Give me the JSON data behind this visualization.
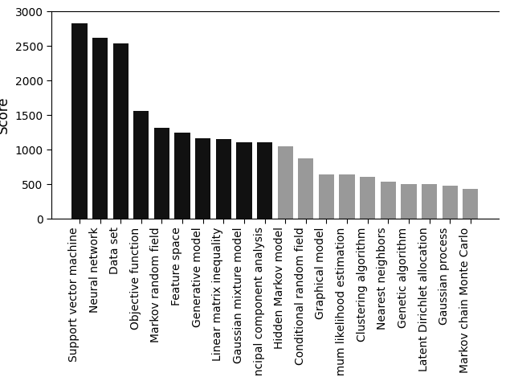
{
  "categories": [
    "Support vector machine",
    "Neural network",
    "Data set",
    "Objective function",
    "Markov random field",
    "Feature space",
    "Generative model",
    "Linear matrix inequality",
    "Gaussian mixture model",
    "Principal component analysis",
    "Hidden Markov model",
    "Conditional random field",
    "Graphical model",
    "Maximum likelihood estimation",
    "Clustering algorithm",
    "Nearest neighbors",
    "Genetic algorithm",
    "Latent Dirichlet allocation",
    "Gaussian process",
    "Markov chain Monte Carlo"
  ],
  "values": [
    2830,
    2615,
    2535,
    1555,
    1320,
    1245,
    1160,
    1155,
    1110,
    1105,
    1045,
    875,
    645,
    640,
    610,
    530,
    500,
    495,
    478,
    430
  ],
  "colors": [
    "#111111",
    "#111111",
    "#111111",
    "#111111",
    "#111111",
    "#111111",
    "#111111",
    "#111111",
    "#111111",
    "#111111",
    "#999999",
    "#999999",
    "#999999",
    "#999999",
    "#999999",
    "#999999",
    "#999999",
    "#999999",
    "#999999",
    "#999999"
  ],
  "ylabel": "Score",
  "ylim": [
    0,
    3000
  ],
  "yticks": [
    0,
    500,
    1000,
    1500,
    2000,
    2500,
    3000
  ],
  "figsize": [
    6.4,
    4.69
  ],
  "dpi": 100,
  "bar_width": 0.75,
  "tick_fontsize": 10,
  "ylabel_fontsize": 12
}
